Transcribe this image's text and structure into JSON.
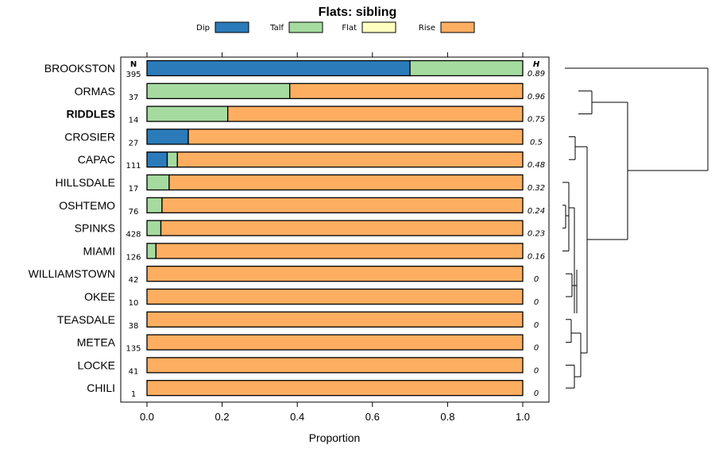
{
  "chart_data": {
    "type": "bar",
    "subtype": "stacked-horizontal-proportion",
    "title": "Flats: sibling",
    "xlabel": "Proportion",
    "ylabel": "",
    "xlim": [
      0,
      1
    ],
    "xticks": [
      "0.0",
      "0.2",
      "0.4",
      "0.6",
      "0.8",
      "1.0"
    ],
    "n_header": "N",
    "h_header": "H",
    "legend": [
      {
        "name": "Dip",
        "color": "#2b7bba"
      },
      {
        "name": "Talf",
        "color": "#a6dba0"
      },
      {
        "name": "Flat",
        "color": "#ffffbf"
      },
      {
        "name": "Rise",
        "color": "#fdae61"
      }
    ],
    "categories": [
      "BROOKSTON",
      "ORMAS",
      "RIDDLES",
      "CROSIER",
      "CAPAC",
      "HILLSDALE",
      "OSHTEMO",
      "SPINKS",
      "MIAMI",
      "WILLIAMSTOWN",
      "OKEE",
      "TEASDALE",
      "METEA",
      "LOCKE",
      "CHILI"
    ],
    "highlighted": [
      "RIDDLES"
    ],
    "n": [
      "395",
      "37",
      "14",
      "27",
      "111",
      "17",
      "76",
      "428",
      "126",
      "42",
      "10",
      "38",
      "135",
      "41",
      "1"
    ],
    "h": [
      "0.89",
      "0.96",
      "0.75",
      "0.5",
      "0.48",
      "0.32",
      "0.24",
      "0.23",
      "0.16",
      "0",
      "0",
      "0",
      "0",
      "0",
      "0"
    ],
    "series": [
      {
        "name": "Dip",
        "values": [
          0.7,
          0,
          0,
          0.11,
          0.054,
          0,
          0,
          0,
          0,
          0,
          0,
          0,
          0,
          0,
          0
        ]
      },
      {
        "name": "Talf",
        "values": [
          0.3,
          0.38,
          0.215,
          0,
          0.027,
          0.059,
          0.04,
          0.037,
          0.024,
          0,
          0,
          0,
          0,
          0,
          0
        ]
      },
      {
        "name": "Flat",
        "values": [
          0,
          0,
          0,
          0,
          0,
          0,
          0,
          0,
          0,
          0,
          0,
          0,
          0,
          0,
          0
        ]
      },
      {
        "name": "Rise",
        "values": [
          0,
          0.62,
          0.785,
          0.89,
          0.919,
          0.941,
          0.96,
          0.963,
          0.976,
          1,
          1,
          1,
          1,
          1,
          1
        ]
      }
    ],
    "dendrogram": {
      "description": "hierarchical clustering of rows",
      "merges": [
        {
          "left": "ORMAS",
          "right": "RIDDLES"
        },
        {
          "left": "CROSIER",
          "right": "CAPAC"
        },
        {
          "left": "OSHTEMO",
          "right": "SPINKS"
        },
        {
          "left": "WILLIAMSTOWN",
          "right": "OKEE"
        },
        {
          "left": "TEASDALE",
          "right": "METEA"
        },
        {
          "left": "LOCKE",
          "right": "CHILI"
        }
      ]
    }
  }
}
